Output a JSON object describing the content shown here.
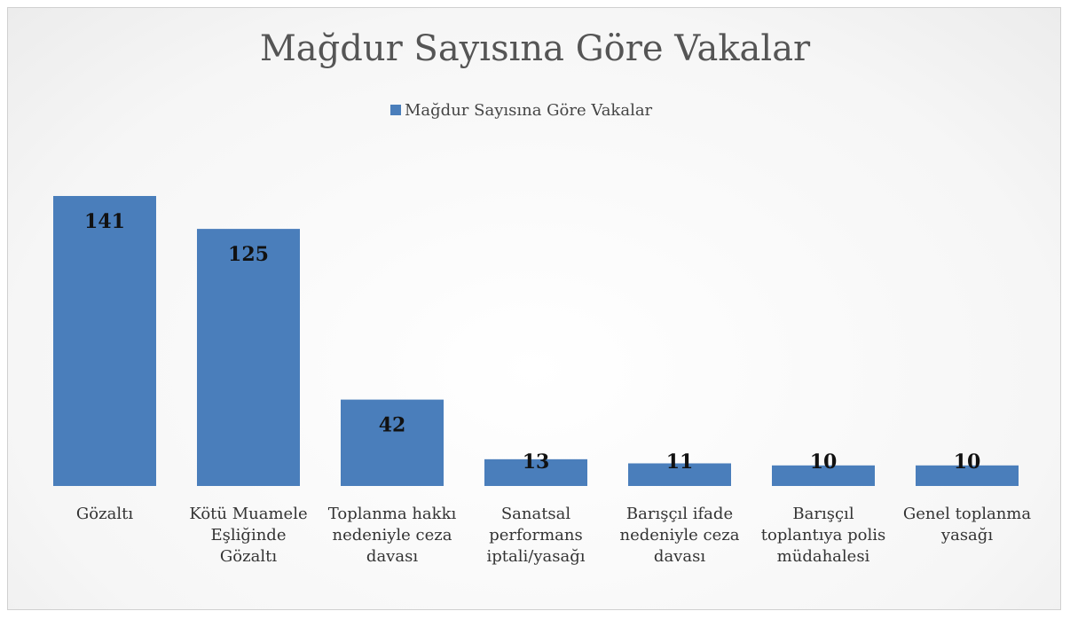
{
  "chart_data": {
    "type": "bar",
    "title": "Mağdur Sayısına Göre Vakalar",
    "legend": "Mağdur Sayısına Göre Vakalar",
    "categories": [
      "Gözaltı",
      "Kötü Muamele Eşliğinde Gözaltı",
      "Toplanma hakkı nedeniyle ceza davası",
      "Sanatsal performans iptali/yasağı",
      "Barışçıl ifade nedeniyle ceza davası",
      "Barışçıl toplantıya polis müdahalesi",
      "Genel toplanma yasağı"
    ],
    "values": [
      141,
      125,
      42,
      13,
      11,
      10,
      10
    ],
    "color": "#4a7ebb"
  }
}
